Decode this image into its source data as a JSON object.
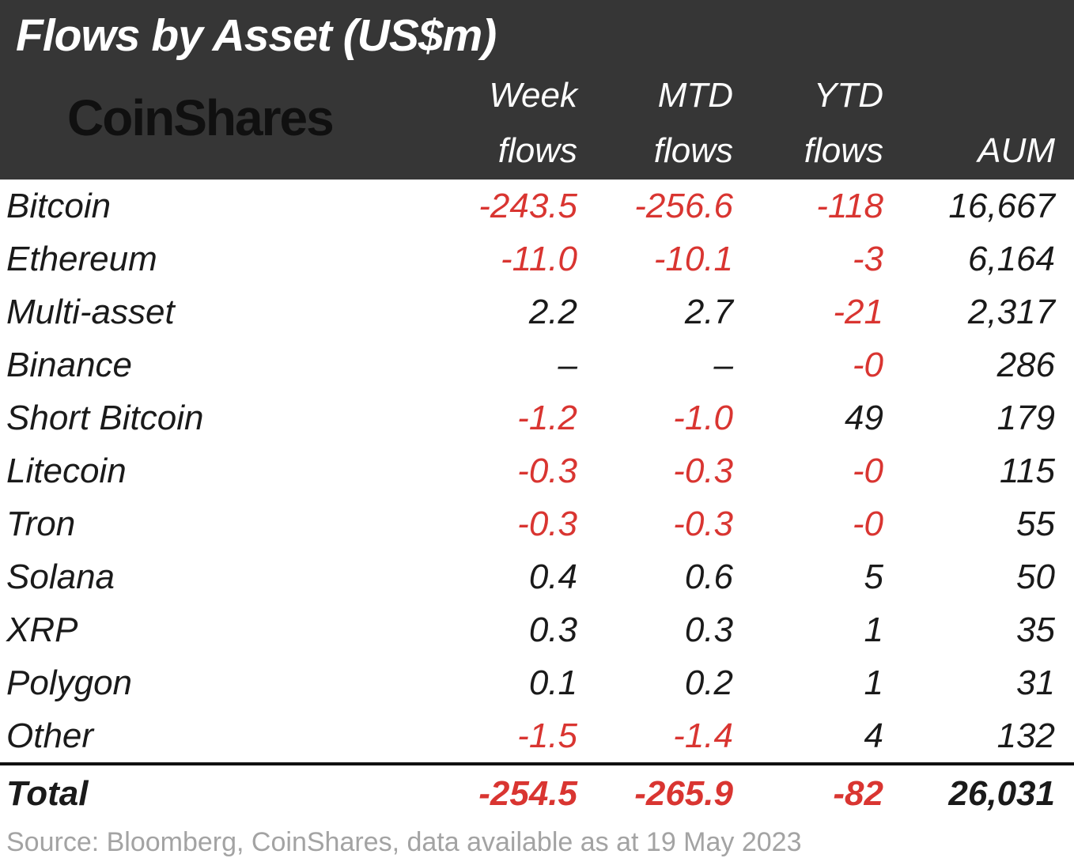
{
  "colors": {
    "negative": "#d93531",
    "header_bg": "#363636",
    "title_text": "#ffffff",
    "body_text": "#1a1a1a"
  },
  "header": {
    "title": "Flows by Asset (US$m)",
    "logo": "CoinShares",
    "col_week": "Week",
    "col_mtd": "MTD",
    "col_ytd": "YTD",
    "col_flows": "flows",
    "col_aum": "AUM"
  },
  "footer": {
    "source": "Source: Bloomberg, CoinShares, data available as at 19 May 2023"
  },
  "chart_data": {
    "type": "table",
    "title": "Flows by Asset (US$m)",
    "columns": [
      "Week flows",
      "MTD flows",
      "YTD flows",
      "AUM"
    ],
    "rows": [
      {
        "asset": "Bitcoin",
        "week": "-243.5",
        "mtd": "-256.6",
        "ytd": "-118",
        "aum": "16,667"
      },
      {
        "asset": "Ethereum",
        "week": "-11.0",
        "mtd": "-10.1",
        "ytd": "-3",
        "aum": "6,164"
      },
      {
        "asset": "Multi-asset",
        "week": "2.2",
        "mtd": "2.7",
        "ytd": "-21",
        "aum": "2,317"
      },
      {
        "asset": "Binance",
        "week": "–",
        "mtd": "–",
        "ytd": "-0",
        "aum": "286"
      },
      {
        "asset": "Short Bitcoin",
        "week": "-1.2",
        "mtd": "-1.0",
        "ytd": "49",
        "aum": "179"
      },
      {
        "asset": "Litecoin",
        "week": "-0.3",
        "mtd": "-0.3",
        "ytd": "-0",
        "aum": "115"
      },
      {
        "asset": "Tron",
        "week": "-0.3",
        "mtd": "-0.3",
        "ytd": "-0",
        "aum": "55"
      },
      {
        "asset": "Solana",
        "week": "0.4",
        "mtd": "0.6",
        "ytd": "5",
        "aum": "50"
      },
      {
        "asset": "XRP",
        "week": "0.3",
        "mtd": "0.3",
        "ytd": "1",
        "aum": "35"
      },
      {
        "asset": "Polygon",
        "week": "0.1",
        "mtd": "0.2",
        "ytd": "1",
        "aum": "31"
      },
      {
        "asset": "Other",
        "week": "-1.5",
        "mtd": "-1.4",
        "ytd": "4",
        "aum": "132"
      }
    ],
    "total": {
      "asset": "Total",
      "week": "-254.5",
      "mtd": "-265.9",
      "ytd": "-82",
      "aum": "26,031"
    }
  }
}
